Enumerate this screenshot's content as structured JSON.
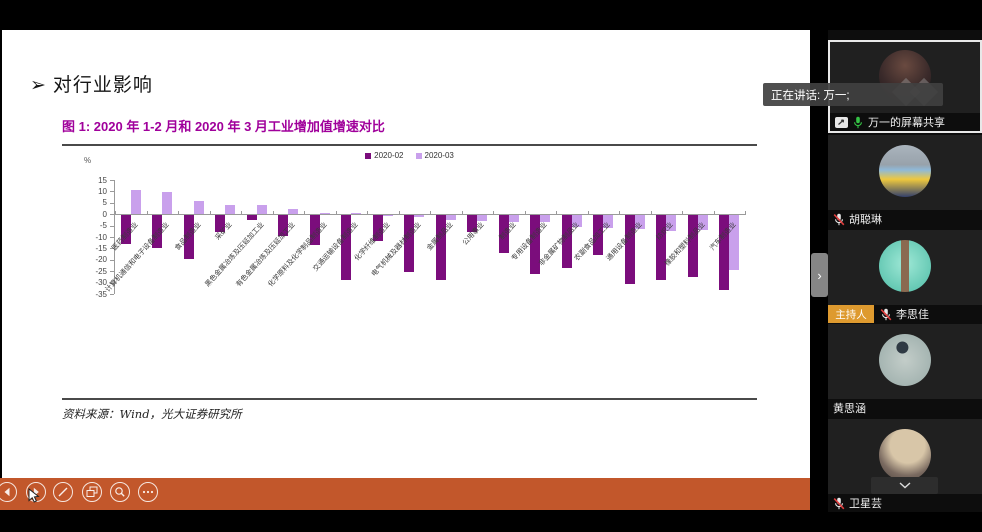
{
  "slide": {
    "bullet": "➢",
    "title": "对行业影响",
    "figure_title": "图 1:  2020 年 1-2 月和 2020 年 3 月工业增加值增速对比",
    "source": "资料来源：Wind，光大证券研究所"
  },
  "chart_data": {
    "type": "bar",
    "title": "2020 年 1-2 月和 2020 年 3 月工业增加值增速对比",
    "unit_label": "%",
    "ylim": [
      -35,
      15
    ],
    "ytick_step": 5,
    "grid": false,
    "legend_position": "top-center",
    "categories": [
      "医药制造业",
      "计算机通信和电子设备制造业",
      "食品制造业",
      "采矿业",
      "黑色金属冶炼及压延加工业",
      "有色金属冶炼及压延加工业",
      "化学原料及化学制品制造业",
      "交通运输设备制造业",
      "化学纤维制造业",
      "电气机械及器材制造业",
      "金属制品业",
      "公用事业",
      "制造业",
      "专用设备制造业",
      "非金属矿物制品业",
      "农副食品加工业",
      "通用设备制造业",
      "纺织业",
      "橡胶和塑料制品业",
      "汽车制造业"
    ],
    "series": [
      {
        "name": "2020-02",
        "color": "#7B0D7C",
        "values": [
          -12.5,
          -14.5,
          -19,
          -7.5,
          -2,
          -9,
          -13,
          -28.5,
          -11.5,
          -25,
          -28.5,
          -7.5,
          -16.5,
          -26,
          -23,
          -17.5,
          -30,
          -28.5,
          -27,
          -33
        ]
      },
      {
        "name": "2020-03",
        "color": "#C9A0EC",
        "values": [
          10.5,
          9.9,
          5.8,
          4.2,
          4,
          2.5,
          0.7,
          0.4,
          -0.3,
          -0.8,
          -2.2,
          -2.6,
          -3.1,
          -3.1,
          -5.2,
          -5.6,
          -6,
          -7.1,
          -6.3,
          -24
        ]
      }
    ]
  },
  "toolbar": {
    "icons": [
      "previous",
      "next",
      "pen",
      "slides",
      "magnifier",
      "more"
    ]
  },
  "tooltip": {
    "text": "正在讲话: 万一;"
  },
  "sidebar": {
    "tiles": [
      {
        "name": "万一的屏幕共享",
        "mic": "on",
        "sharing": true,
        "active": true
      },
      {
        "name": "胡聪琳",
        "mic": "muted"
      },
      {
        "name": "李思佳",
        "mic": "muted",
        "badge": "主持人"
      },
      {
        "name": "黄思涵",
        "mic": "none"
      },
      {
        "name": "卫星芸",
        "mic": "muted",
        "chevron": true
      }
    ]
  },
  "colors": {
    "toolbar_orange": "#C2572B",
    "figure_title": "#A0009B",
    "series_2020_02": "#7B0D7C",
    "series_2020_03": "#C9A0EC",
    "host_badge": "#DE9A2F",
    "mic_on_green": "#35c245",
    "mic_muted_slash": "#e03e3e"
  }
}
